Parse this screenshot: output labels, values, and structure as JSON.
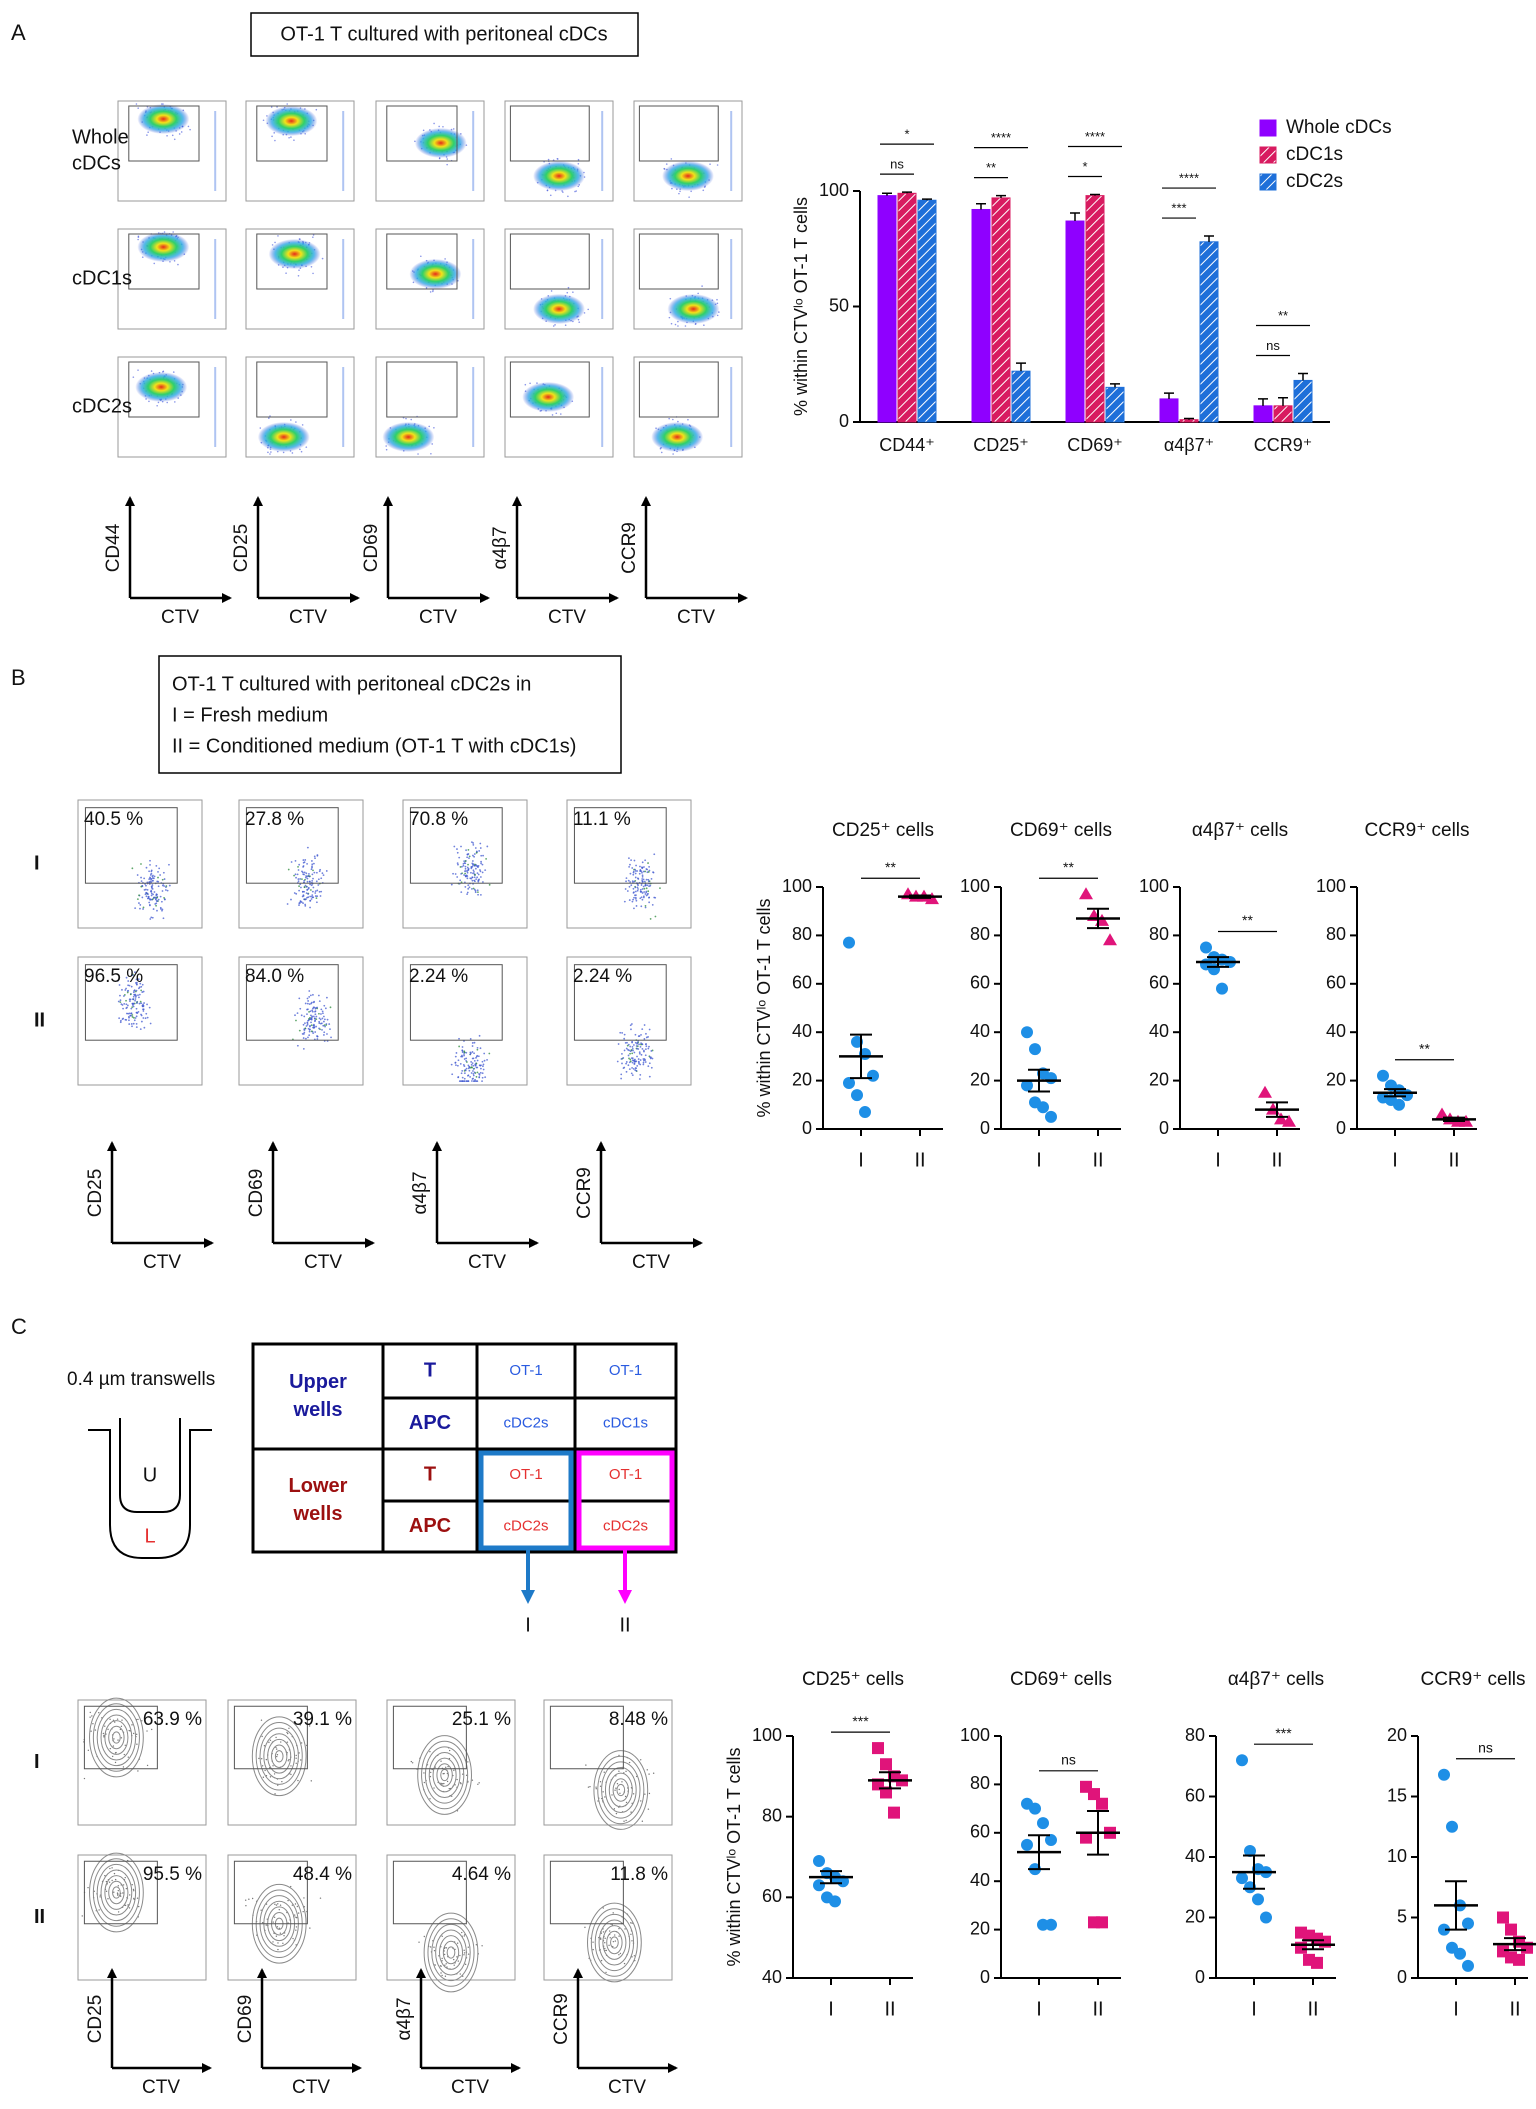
{
  "figure": {
    "panel_labels": [
      "A",
      "B",
      "C"
    ],
    "A": {
      "box_title": "OT-1 T cultured with peritoneal cDCs",
      "row_labels": [
        [
          "Whole",
          "cDCs"
        ],
        [
          "cDC1s"
        ],
        [
          "cDC2s"
        ]
      ],
      "axes": [
        {
          "y": "CD44",
          "x": "CTV"
        },
        {
          "y": "CD25",
          "x": "CTV"
        },
        {
          "y": "CD69",
          "x": "CTV"
        },
        {
          "y": "α4β7",
          "x": "CTV"
        },
        {
          "y": "CCR9",
          "x": "CTV"
        }
      ]
    },
    "B": {
      "box_lines": [
        "OT-1 T cultured with peritoneal cDC2s in",
        "I = Fresh medium",
        "II = Conditioned medium (OT-1 T with cDC1s)"
      ],
      "row_labels": [
        "I",
        "II"
      ],
      "gate_labels": [
        [
          "40.5 %",
          "27.8 %",
          "70.8 %",
          "11.1 %"
        ],
        [
          "96.5 %",
          "84.0 %",
          "2.24 %",
          "2.24 %"
        ]
      ],
      "axes": [
        {
          "y": "CD25",
          "x": "CTV"
        },
        {
          "y": "CD69",
          "x": "CTV"
        },
        {
          "y": "α4β7",
          "x": "CTV"
        },
        {
          "y": "CCR9",
          "x": "CTV"
        }
      ]
    },
    "C": {
      "transwell_label": "0.4 µm transwells",
      "upper_mark": "U",
      "lower_mark": "L",
      "table": {
        "groups": [
          {
            "label": [
              "Upper",
              "wells"
            ],
            "rows": [
              [
                "T",
                "OT-1",
                "OT-1"
              ],
              [
                "APC",
                "cDC2s",
                "cDC1s"
              ]
            ]
          },
          {
            "label": [
              "Lower",
              "wells"
            ],
            "rows": [
              [
                "T",
                "OT-1",
                "OT-1"
              ],
              [
                "APC",
                "cDC2s",
                "cDC2s"
              ]
            ]
          }
        ]
      },
      "arrows": [
        "I",
        "II"
      ],
      "row_labels": [
        "I",
        "II"
      ],
      "gate_labels": [
        [
          "63.9 %",
          "39.1 %",
          "25.1 %",
          "8.48 %"
        ],
        [
          "95.5 %",
          "48.4 %",
          "4.64 %",
          "11.8 %"
        ]
      ],
      "axes": [
        {
          "y": "CD25",
          "x": "CTV"
        },
        {
          "y": "CD69",
          "x": "CTV"
        },
        {
          "y": "α4β7",
          "x": "CTV"
        },
        {
          "y": "CCR9",
          "x": "CTV"
        }
      ]
    }
  },
  "chart_data": [
    {
      "type": "bar",
      "ylabel": "% within CTVˡᵒ OT-1 T cells",
      "categories": [
        "CD44⁺",
        "CD25⁺",
        "CD69⁺",
        "α4β7⁺",
        "CCR9⁺"
      ],
      "series": [
        {
          "name": "Whole cDCs",
          "color": "#8f00ff",
          "hatch": false,
          "values": [
            98,
            92,
            87,
            10,
            7
          ],
          "errors": [
            1,
            2.5,
            3.5,
            2.5,
            3
          ]
        },
        {
          "name": "cDC1s",
          "color": "#d81b60",
          "hatch": true,
          "values": [
            99,
            97,
            98,
            1,
            7
          ],
          "errors": [
            0.5,
            1,
            0.5,
            0.5,
            3.5
          ]
        },
        {
          "name": "cDC2s",
          "color": "#1e6fd9",
          "hatch": true,
          "values": [
            96,
            22,
            15,
            78,
            18
          ],
          "errors": [
            0.5,
            3.5,
            1.5,
            2.5,
            3
          ]
        }
      ],
      "ylim": [
        0,
        100
      ],
      "yticks": [
        0,
        50,
        100
      ],
      "legend": "upper right",
      "annotations": [
        {
          "category": "CD44⁺",
          "between": [
            "Whole cDCs",
            "cDC1s"
          ],
          "text": "ns"
        },
        {
          "category": "CD44⁺",
          "between": [
            "Whole cDCs",
            "cDC2s"
          ],
          "text": "*"
        },
        {
          "category": "CD25⁺",
          "between": [
            "Whole cDCs",
            "cDC1s"
          ],
          "text": "**"
        },
        {
          "category": "CD25⁺",
          "between": [
            "Whole cDCs",
            "cDC2s"
          ],
          "text": "****"
        },
        {
          "category": "CD69⁺",
          "between": [
            "Whole cDCs",
            "cDC1s"
          ],
          "text": "*"
        },
        {
          "category": "CD69⁺",
          "between": [
            "Whole cDCs",
            "cDC2s"
          ],
          "text": "****"
        },
        {
          "category": "α4β7⁺",
          "between": [
            "Whole cDCs",
            "cDC1s"
          ],
          "text": "***"
        },
        {
          "category": "α4β7⁺",
          "between": [
            "Whole cDCs",
            "cDC2s"
          ],
          "text": "****"
        },
        {
          "category": "CCR9⁺",
          "between": [
            "Whole cDCs",
            "cDC1s"
          ],
          "text": "ns"
        },
        {
          "category": "CCR9⁺",
          "between": [
            "Whole cDCs",
            "cDC2s"
          ],
          "text": "**"
        }
      ]
    },
    {
      "type": "scatter",
      "title": "CD25⁺ cells",
      "ylabel": "% within CTVˡᵒ OT-1 T cells",
      "categories": [
        "I",
        "II"
      ],
      "series": [
        {
          "color": "#1e8fe6",
          "marker": "circle",
          "values": [
            77,
            36,
            31,
            22,
            19,
            14,
            7
          ],
          "mean": 30,
          "sem": 9
        },
        {
          "color": "#e0147a",
          "marker": "triangle",
          "values": [
            97,
            96,
            96,
            95
          ],
          "mean": 96,
          "sem": 0.5
        }
      ],
      "ylim": [
        0,
        100
      ],
      "yticks": [
        0,
        20,
        40,
        60,
        80,
        100
      ],
      "annotation": "**"
    },
    {
      "type": "scatter",
      "title": "CD69⁺ cells",
      "categories": [
        "I",
        "II"
      ],
      "series": [
        {
          "color": "#1e8fe6",
          "marker": "circle",
          "values": [
            40,
            33,
            23,
            21,
            18,
            11,
            9,
            5
          ],
          "mean": 20,
          "sem": 4.5
        },
        {
          "color": "#e0147a",
          "marker": "triangle",
          "values": [
            97,
            88,
            86,
            78
          ],
          "mean": 87,
          "sem": 4
        }
      ],
      "ylim": [
        0,
        100
      ],
      "yticks": [
        0,
        20,
        40,
        60,
        80,
        100
      ],
      "annotation": "**"
    },
    {
      "type": "scatter",
      "title": "α4β7⁺ cells",
      "categories": [
        "I",
        "II"
      ],
      "series": [
        {
          "color": "#1e8fe6",
          "marker": "circle",
          "values": [
            75,
            71,
            70,
            69,
            68,
            66,
            58
          ],
          "mean": 69,
          "sem": 2
        },
        {
          "color": "#e0147a",
          "marker": "triangle",
          "values": [
            15,
            8,
            4,
            3
          ],
          "mean": 8,
          "sem": 3
        }
      ],
      "ylim": [
        0,
        100
      ],
      "yticks": [
        0,
        20,
        40,
        60,
        80,
        100
      ],
      "annotation": "**"
    },
    {
      "type": "scatter",
      "title": "CCR9⁺ cells",
      "categories": [
        "I",
        "II"
      ],
      "series": [
        {
          "color": "#1e8fe6",
          "marker": "circle",
          "values": [
            22,
            18,
            16,
            14,
            13,
            12,
            10
          ],
          "mean": 15,
          "sem": 1.5
        },
        {
          "color": "#e0147a",
          "marker": "triangle",
          "values": [
            6,
            4,
            3,
            3
          ],
          "mean": 4,
          "sem": 0.7
        }
      ],
      "ylim": [
        0,
        100
      ],
      "yticks": [
        0,
        20,
        40,
        60,
        80,
        100
      ],
      "annotation": "**"
    },
    {
      "type": "scatter",
      "title": "CD25⁺ cells",
      "ylabel": "% within CTVˡᵒ OT-1 T cells",
      "categories": [
        "I",
        "II"
      ],
      "series": [
        {
          "color": "#1e8fe6",
          "marker": "circle",
          "values": [
            69,
            66,
            65,
            64,
            63,
            60,
            59
          ],
          "mean": 65,
          "sem": 1.5
        },
        {
          "color": "#e0147a",
          "marker": "square",
          "values": [
            97,
            93,
            90,
            89,
            88,
            86,
            81
          ],
          "mean": 89,
          "sem": 2
        }
      ],
      "ylim": [
        40,
        100
      ],
      "yticks": [
        40,
        60,
        80,
        100
      ],
      "annotation": "***"
    },
    {
      "type": "scatter",
      "title": "CD69⁺ cells",
      "categories": [
        "I",
        "II"
      ],
      "series": [
        {
          "color": "#1e8fe6",
          "marker": "circle",
          "values": [
            72,
            70,
            64,
            57,
            55,
            45,
            22,
            22
          ],
          "mean": 52,
          "sem": 7
        },
        {
          "color": "#e0147a",
          "marker": "square",
          "values": [
            79,
            76,
            72,
            60,
            58,
            23,
            23
          ],
          "mean": 60,
          "sem": 9
        }
      ],
      "ylim": [
        0,
        100
      ],
      "yticks": [
        0,
        20,
        40,
        60,
        80,
        100
      ],
      "annotation": "ns"
    },
    {
      "type": "scatter",
      "title": "α4β7⁺ cells",
      "categories": [
        "I",
        "II"
      ],
      "series": [
        {
          "color": "#1e8fe6",
          "marker": "circle",
          "values": [
            72,
            42,
            36,
            35,
            33,
            30,
            26,
            20
          ],
          "mean": 35,
          "sem": 5.5
        },
        {
          "color": "#e0147a",
          "marker": "square",
          "values": [
            15,
            14,
            13,
            12,
            10,
            6,
            5
          ],
          "mean": 11,
          "sem": 1.5
        }
      ],
      "ylim": [
        0,
        80
      ],
      "yticks": [
        0,
        20,
        40,
        60,
        80
      ],
      "annotation": "***"
    },
    {
      "type": "scatter",
      "title": "CCR9⁺ cells",
      "categories": [
        "I",
        "II"
      ],
      "series": [
        {
          "color": "#1e8fe6",
          "marker": "circle",
          "values": [
            16.8,
            12.5,
            6,
            4.5,
            4,
            2.5,
            2,
            1
          ],
          "mean": 6,
          "sem": 2
        },
        {
          "color": "#e0147a",
          "marker": "square",
          "values": [
            5,
            4,
            3,
            2.5,
            2.2,
            1.7,
            1.5
          ],
          "mean": 2.8,
          "sem": 0.5
        }
      ],
      "ylim": [
        0,
        20
      ],
      "yticks": [
        0,
        5,
        10,
        15,
        20
      ],
      "annotation": "ns"
    }
  ]
}
